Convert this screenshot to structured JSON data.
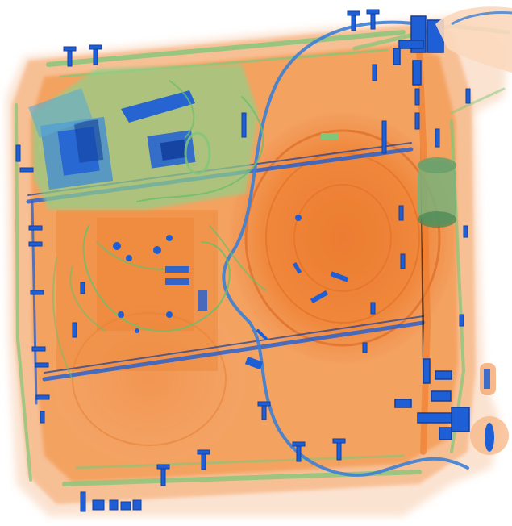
{
  "image": {
    "kind": "x-ray baggage scan",
    "colors": {
      "background": "#ffffff",
      "organic": "#f07a2a",
      "organic_light": "#f7b98a",
      "organic_pale": "#fbe0cc",
      "mixed": "#7fc77a",
      "metal": "#1f5fd6",
      "metal_dark": "#123f9e"
    }
  }
}
